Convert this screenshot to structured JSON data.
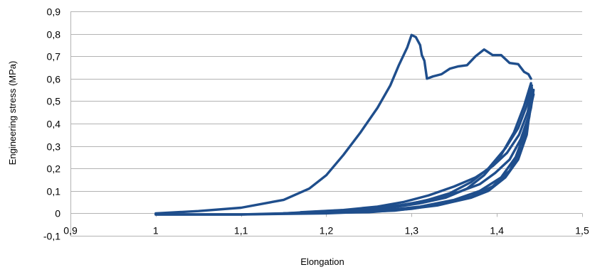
{
  "chart_data": {
    "type": "line",
    "title": "",
    "xlabel": "Elongation",
    "ylabel": "Engineering stress  (MPa)",
    "xlim": [
      0.9,
      1.5
    ],
    "ylim": [
      -0.1,
      0.9
    ],
    "x_ticks": [
      "0,9",
      "1",
      "1,1",
      "1,2",
      "1,3",
      "1,4",
      "1,5"
    ],
    "y_ticks": [
      "-0,1",
      "0",
      "0,1",
      "0,2",
      "0,3",
      "0,4",
      "0,5",
      "0,6",
      "0,7",
      "0,8",
      "0,9"
    ],
    "grid": "horizontal",
    "legend": "none",
    "series_color": "#1f4e8c",
    "series": [
      {
        "points": [
          [
            1.0,
            0.0
          ],
          [
            1.05,
            0.01
          ],
          [
            1.1,
            0.025
          ],
          [
            1.15,
            0.06
          ],
          [
            1.18,
            0.11
          ],
          [
            1.2,
            0.17
          ],
          [
            1.22,
            0.26
          ],
          [
            1.24,
            0.36
          ],
          [
            1.26,
            0.47
          ],
          [
            1.275,
            0.57
          ],
          [
            1.285,
            0.66
          ],
          [
            1.295,
            0.74
          ],
          [
            1.3,
            0.795
          ],
          [
            1.305,
            0.785
          ],
          [
            1.31,
            0.75
          ],
          [
            1.312,
            0.705
          ],
          [
            1.315,
            0.68
          ],
          [
            1.318,
            0.6
          ],
          [
            1.325,
            0.61
          ],
          [
            1.335,
            0.62
          ],
          [
            1.345,
            0.645
          ],
          [
            1.355,
            0.655
          ],
          [
            1.365,
            0.66
          ],
          [
            1.375,
            0.7
          ],
          [
            1.385,
            0.73
          ],
          [
            1.395,
            0.705
          ],
          [
            1.405,
            0.705
          ],
          [
            1.415,
            0.67
          ],
          [
            1.425,
            0.665
          ],
          [
            1.432,
            0.63
          ],
          [
            1.437,
            0.62
          ],
          [
            1.44,
            0.6
          ]
        ]
      },
      {
        "points": [
          [
            1.44,
            0.58
          ],
          [
            1.432,
            0.48
          ],
          [
            1.42,
            0.36
          ],
          [
            1.405,
            0.26
          ],
          [
            1.385,
            0.17
          ],
          [
            1.365,
            0.11
          ],
          [
            1.34,
            0.07
          ],
          [
            1.31,
            0.045
          ],
          [
            1.28,
            0.028
          ],
          [
            1.25,
            0.015
          ],
          [
            1.2,
            0.008
          ],
          [
            1.15,
            0.0
          ],
          [
            1.1,
            -0.005
          ],
          [
            1.05,
            -0.005
          ],
          [
            1.0,
            -0.005
          ]
        ]
      },
      {
        "points": [
          [
            1.0,
            -0.005
          ],
          [
            1.1,
            -0.005
          ],
          [
            1.2,
            0.0
          ],
          [
            1.28,
            0.012
          ],
          [
            1.33,
            0.035
          ],
          [
            1.37,
            0.07
          ],
          [
            1.39,
            0.1
          ],
          [
            1.41,
            0.16
          ],
          [
            1.425,
            0.24
          ],
          [
            1.435,
            0.35
          ],
          [
            1.44,
            0.5
          ],
          [
            1.441,
            0.56
          ]
        ]
      },
      {
        "points": [
          [
            1.441,
            0.57
          ],
          [
            1.435,
            0.48
          ],
          [
            1.425,
            0.38
          ],
          [
            1.41,
            0.29
          ],
          [
            1.39,
            0.2
          ],
          [
            1.37,
            0.14
          ],
          [
            1.345,
            0.09
          ],
          [
            1.315,
            0.055
          ],
          [
            1.285,
            0.035
          ],
          [
            1.25,
            0.02
          ],
          [
            1.2,
            0.01
          ],
          [
            1.15,
            0.0
          ]
        ]
      },
      {
        "points": [
          [
            1.15,
            0.0
          ],
          [
            1.25,
            0.005
          ],
          [
            1.3,
            0.02
          ],
          [
            1.34,
            0.045
          ],
          [
            1.37,
            0.075
          ],
          [
            1.395,
            0.12
          ],
          [
            1.415,
            0.19
          ],
          [
            1.43,
            0.3
          ],
          [
            1.438,
            0.43
          ],
          [
            1.442,
            0.54
          ]
        ]
      },
      {
        "points": [
          [
            1.442,
            0.55
          ],
          [
            1.436,
            0.45
          ],
          [
            1.426,
            0.35
          ],
          [
            1.412,
            0.27
          ],
          [
            1.395,
            0.21
          ],
          [
            1.375,
            0.16
          ],
          [
            1.35,
            0.12
          ],
          [
            1.32,
            0.08
          ],
          [
            1.29,
            0.05
          ],
          [
            1.26,
            0.03
          ],
          [
            1.22,
            0.015
          ],
          [
            1.17,
            0.005
          ]
        ]
      },
      {
        "points": [
          [
            1.17,
            0.0
          ],
          [
            1.26,
            0.01
          ],
          [
            1.31,
            0.03
          ],
          [
            1.35,
            0.06
          ],
          [
            1.38,
            0.1
          ],
          [
            1.405,
            0.16
          ],
          [
            1.422,
            0.25
          ],
          [
            1.433,
            0.36
          ],
          [
            1.44,
            0.47
          ],
          [
            1.443,
            0.55
          ]
        ]
      },
      {
        "points": [
          [
            1.443,
            0.53
          ],
          [
            1.437,
            0.43
          ],
          [
            1.428,
            0.33
          ],
          [
            1.415,
            0.24
          ],
          [
            1.398,
            0.18
          ],
          [
            1.38,
            0.13
          ],
          [
            1.355,
            0.095
          ],
          [
            1.325,
            0.065
          ],
          [
            1.295,
            0.04
          ],
          [
            1.25,
            0.02
          ],
          [
            1.2,
            0.006
          ]
        ]
      }
    ]
  }
}
